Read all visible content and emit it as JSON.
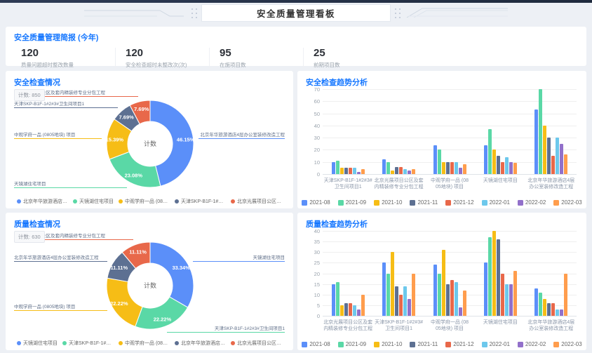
{
  "header": {
    "title": "安全质量管理看板"
  },
  "summary": {
    "title": "安全质量管理简报 (今年)",
    "stats": [
      {
        "value": "120",
        "label": "质量问题超时整改数量"
      },
      {
        "value": "120",
        "label": "安全检查超时未整改次(次)"
      },
      {
        "value": "95",
        "label": "在施项目数"
      },
      {
        "value": "25",
        "label": "前期项目数"
      }
    ]
  },
  "chart_data": [
    {
      "id": "safety-inspection-pie",
      "type": "pie",
      "title": "安全检查情况",
      "badge": {
        "label": "计数:",
        "value": "850"
      },
      "center_label": "计数",
      "slices": [
        {
          "name": "北京年华旅游酒店4层办公室装修改造工程",
          "pct": 46.15,
          "label": "46.15%",
          "color": "#5B8FF9"
        },
        {
          "name": "天镜湖住宅项目",
          "pct": 23.08,
          "label": "23.08%",
          "color": "#5AD8A6"
        },
        {
          "name": "中观学府一品 (0805地块) 项目",
          "pct": 15.39,
          "label": "15.39%",
          "color": "#F6BD16"
        },
        {
          "name": "天津SKP-B1F-1#2#3#卫生间项目1",
          "pct": 7.69,
          "label": "7.69%",
          "color": "#5D7092"
        },
        {
          "name": "北京光展项目公区及套内精装修专业分包工程",
          "pct": 7.69,
          "label": "7.69%",
          "color": "#E8684A"
        }
      ]
    },
    {
      "id": "safety-trend-bar",
      "type": "bar",
      "title": "安全检查趋势分析",
      "ylim": [
        0,
        70
      ],
      "ystep": 10,
      "categories": [
        [
          "天津SKP-B1F-1#2#3#",
          "卫生间项目1"
        ],
        [
          "北京光展项目公区及套",
          "内精装修专业分包工程"
        ],
        [
          "中观学府一品 (08",
          "05地块) 项目"
        ],
        [
          "天镜湖住宅项目",
          ""
        ],
        [
          "北京年华旅游酒店4层",
          "办公室装修改造工程"
        ]
      ],
      "series": [
        {
          "name": "2021-08",
          "color": "#5B8FF9",
          "values": [
            10,
            12,
            24,
            24,
            53
          ]
        },
        {
          "name": "2021-09",
          "color": "#5AD8A6",
          "values": [
            11,
            10,
            20,
            37,
            70
          ]
        },
        {
          "name": "2021-10",
          "color": "#F6BD16",
          "values": [
            5,
            3,
            10,
            20,
            40
          ]
        },
        {
          "name": "2021-11",
          "color": "#5D7092",
          "values": [
            5,
            6,
            10,
            15,
            30
          ]
        },
        {
          "name": "2021-12",
          "color": "#E8684A",
          "values": [
            5,
            6,
            10,
            10,
            15
          ]
        },
        {
          "name": "2022-01",
          "color": "#6DC8EC",
          "values": [
            5,
            4,
            10,
            14,
            30
          ]
        },
        {
          "name": "2022-02",
          "color": "#9270CA",
          "values": [
            2,
            3,
            5,
            10,
            25
          ]
        },
        {
          "name": "2022-03",
          "color": "#FF9D4D",
          "values": [
            4,
            4,
            8,
            9,
            16
          ]
        }
      ]
    },
    {
      "id": "quality-inspection-pie",
      "type": "pie",
      "title": "质量检查情况",
      "badge": {
        "label": "计数:",
        "value": "630"
      },
      "center_label": "计数",
      "slices": [
        {
          "name": "天镜湖住宅项目",
          "pct": 33.34,
          "label": "33.34%",
          "color": "#5B8FF9"
        },
        {
          "name": "天津SKP-B1F-1#2#3#卫生间项目1",
          "pct": 22.22,
          "label": "22.22%",
          "color": "#5AD8A6"
        },
        {
          "name": "中观学府一品 (0805地块) 项目",
          "pct": 22.22,
          "label": "22.22%",
          "color": "#F6BD16"
        },
        {
          "name": "北京年华旅游酒店4层办公室装修改造工程",
          "pct": 11.11,
          "label": "11.11%",
          "color": "#5D7092"
        },
        {
          "name": "北京光展项目公区及套内精装修专业分包工程",
          "pct": 11.11,
          "label": "11.11%",
          "color": "#E8684A"
        }
      ]
    },
    {
      "id": "quality-trend-bar",
      "type": "bar",
      "title": "质量检查趋势分析",
      "ylim": [
        0,
        40
      ],
      "ystep": 5,
      "categories": [
        [
          "北京光展项目公区及套",
          "内精装修专业分包工程"
        ],
        [
          "天津SKP-B1F-1#2#3#",
          "卫生间项目1"
        ],
        [
          "中观学府一品 (08",
          "05地块) 项目"
        ],
        [
          "天镜湖住宅项目",
          ""
        ],
        [
          "北京年华旅游酒店4层",
          "办公室装修改造工程"
        ]
      ],
      "series": [
        {
          "name": "2021-08",
          "color": "#5B8FF9",
          "values": [
            15,
            25,
            24,
            25,
            13
          ]
        },
        {
          "name": "2021-09",
          "color": "#5AD8A6",
          "values": [
            16,
            20,
            20,
            37,
            11
          ]
        },
        {
          "name": "2021-10",
          "color": "#F6BD16",
          "values": [
            5,
            30,
            31,
            40,
            8
          ]
        },
        {
          "name": "2021-11",
          "color": "#5D7092",
          "values": [
            6,
            14,
            15,
            36,
            6
          ]
        },
        {
          "name": "2021-12",
          "color": "#E8684A",
          "values": [
            6,
            10,
            17,
            20,
            6
          ]
        },
        {
          "name": "2022-01",
          "color": "#6DC8EC",
          "values": [
            5,
            14,
            16,
            15,
            3
          ]
        },
        {
          "name": "2022-02",
          "color": "#9270CA",
          "values": [
            3,
            8,
            4,
            15,
            3
          ]
        },
        {
          "name": "2022-03",
          "color": "#FF9D4D",
          "values": [
            10,
            20,
            12,
            21,
            20
          ]
        }
      ]
    }
  ]
}
